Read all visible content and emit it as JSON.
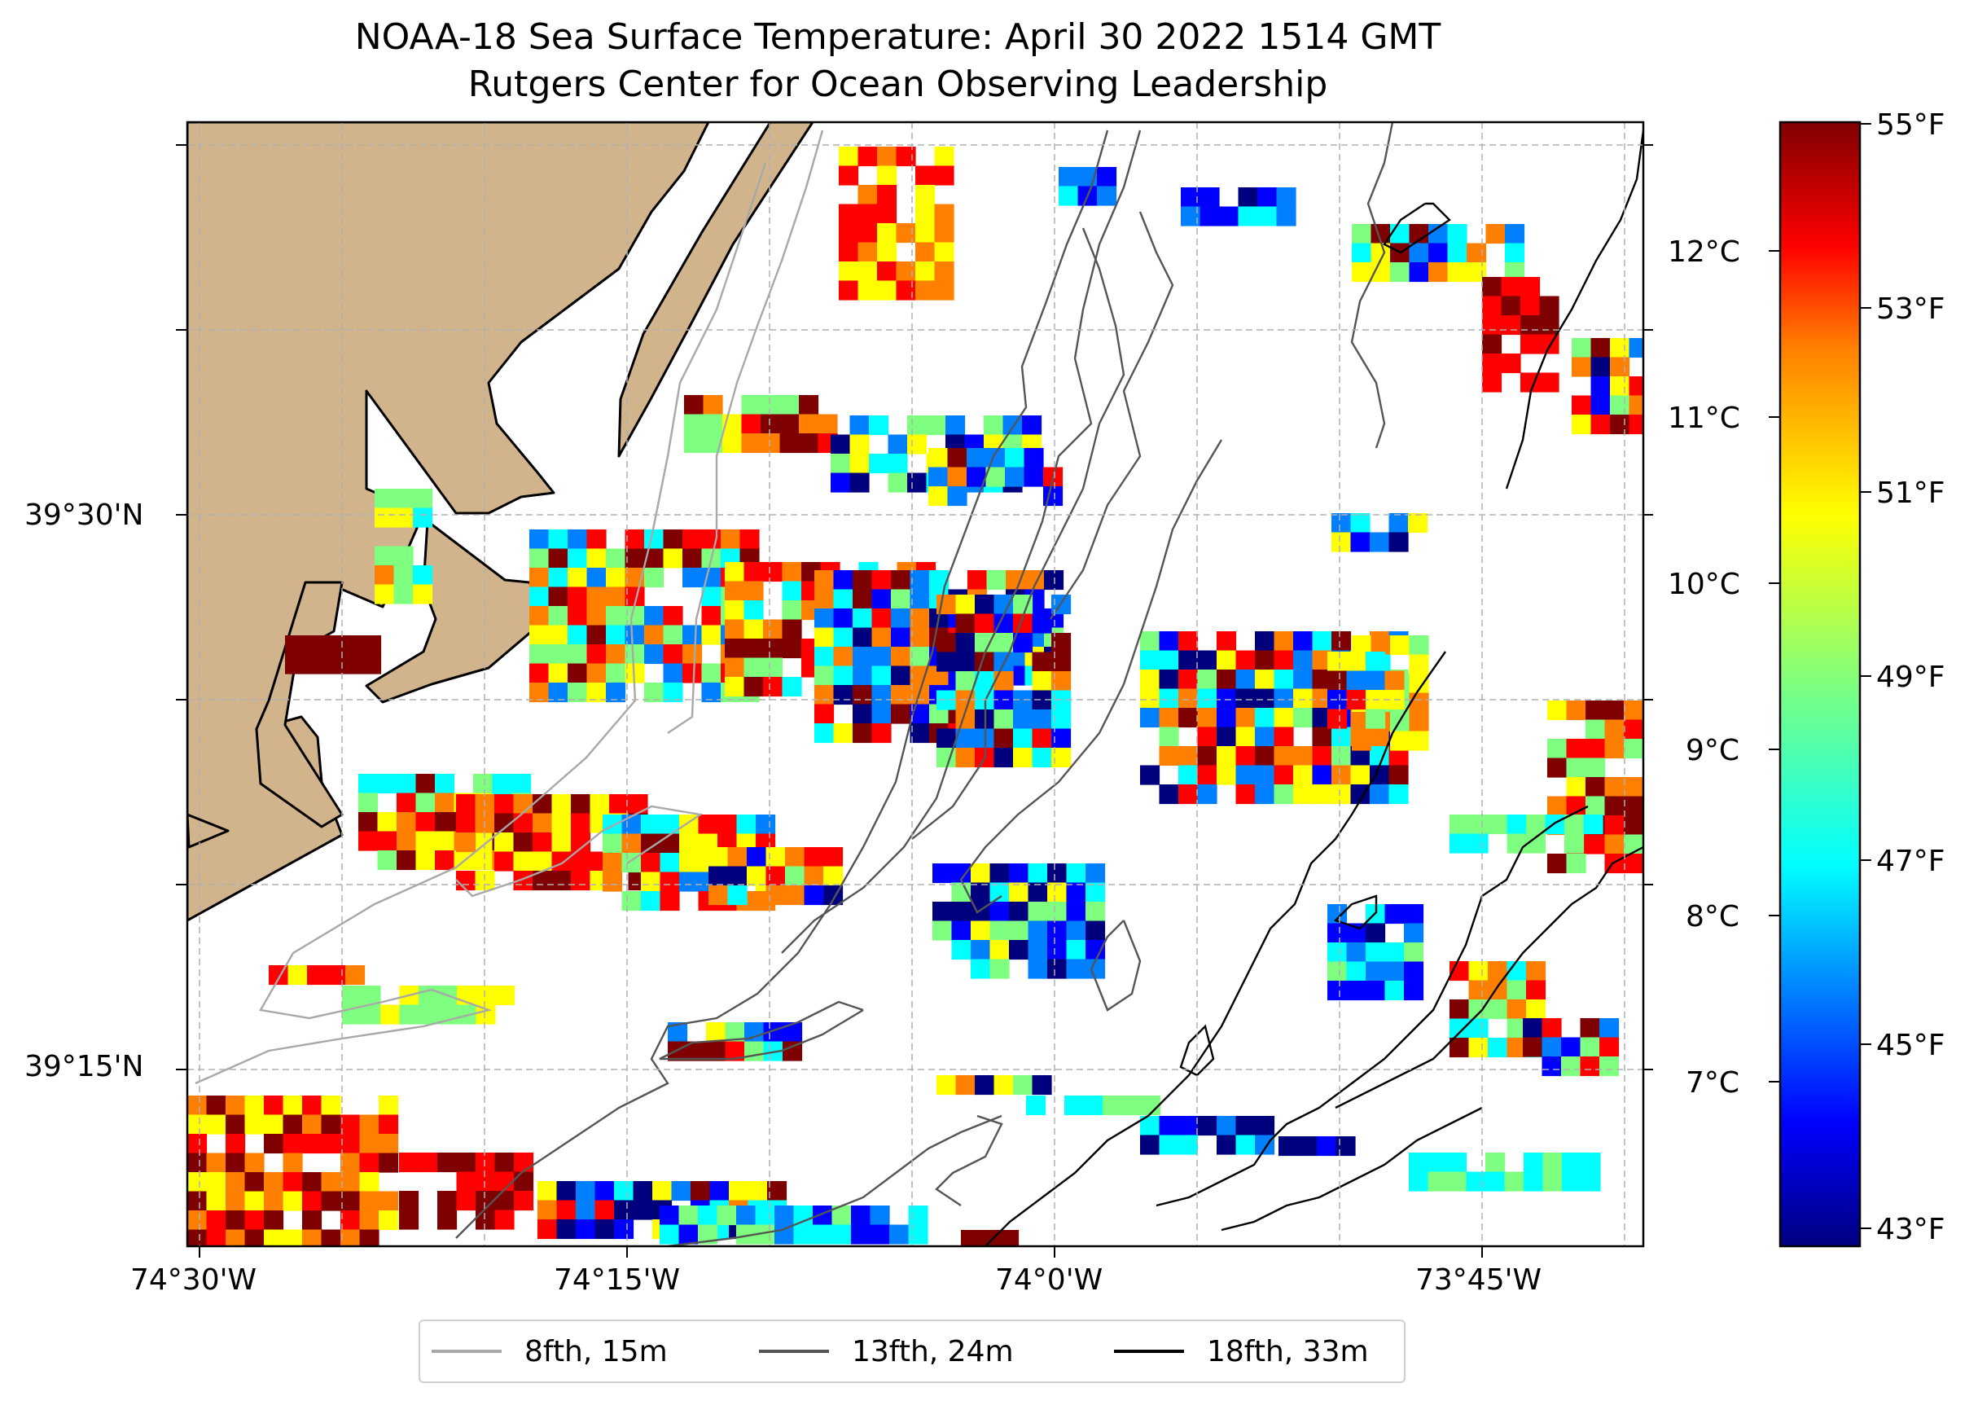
{
  "title": {
    "line1": "NOAA-18 Sea Surface Temperature: April 30 2022 1514 GMT",
    "line2": "Rutgers Center for Ocean Observing Leadership"
  },
  "map": {
    "lon_labels": [
      "74°30'W",
      "74°15'W",
      "74°0'W",
      "73°45'W"
    ],
    "lat_labels": [
      "39°30'N",
      "39°15'N"
    ]
  },
  "colorbar": {
    "fahrenheit_labels": [
      "55°F",
      "53°F",
      "51°F",
      "49°F",
      "47°F",
      "45°F",
      "43°F"
    ],
    "celsius_labels": [
      "12°C",
      "11°C",
      "10°C",
      "9°C",
      "8°C",
      "7°C"
    ],
    "colors": [
      "#00007f",
      "#0000ff",
      "#007fff",
      "#00ffff",
      "#7fff7f",
      "#ffff00",
      "#ff7f00",
      "#ff0000",
      "#7f0000"
    ]
  },
  "legend": {
    "items": [
      {
        "label": "8fth, 15m",
        "color": "#a8a8a8"
      },
      {
        "label": "13fth, 24m",
        "color": "#555555"
      },
      {
        "label": "18fth, 33m",
        "color": "#000000"
      }
    ]
  },
  "colors": {
    "land": "#d2b48c",
    "grid": "#b0b0b0"
  }
}
